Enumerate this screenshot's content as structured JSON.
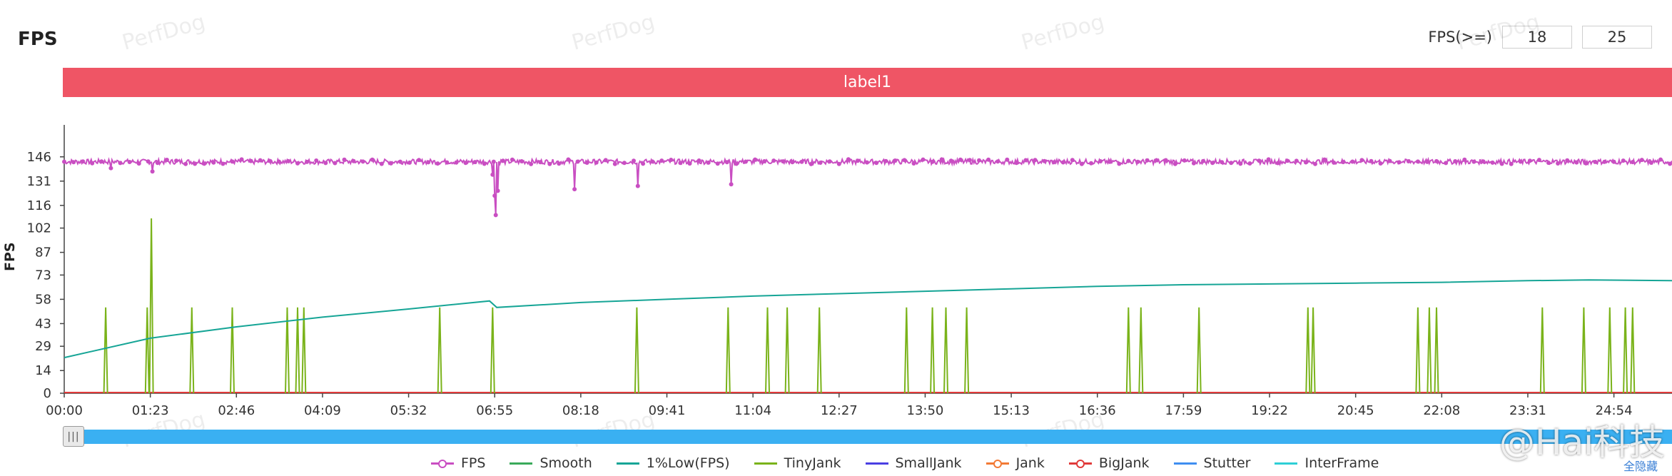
{
  "title": "FPS",
  "fps_filter": {
    "label": "FPS(>=)",
    "value1": "18",
    "value2": "25"
  },
  "label_bar": "label1",
  "hide_all": "全隐藏",
  "weibo_watermark": "@Hai科技",
  "watermark_text": "PerfDog",
  "legend": [
    {
      "name": "FPS",
      "color": "#c94ec2",
      "marker": true
    },
    {
      "name": "Smooth",
      "color": "#3aaa5a",
      "marker": false
    },
    {
      "name": "1%Low(FPS)",
      "color": "#16a596",
      "marker": false
    },
    {
      "name": "TinyJank",
      "color": "#7ab31a",
      "marker": false
    },
    {
      "name": "SmallJank",
      "color": "#4a3fe3",
      "marker": false
    },
    {
      "name": "Jank",
      "color": "#f27a35",
      "marker": true
    },
    {
      "name": "BigJank",
      "color": "#e03a3a",
      "marker": true
    },
    {
      "name": "Stutter",
      "color": "#3f8ef0",
      "marker": false
    },
    {
      "name": "InterFrame",
      "color": "#2ecfd6",
      "marker": false
    }
  ],
  "chart_data": {
    "type": "line",
    "ylabel": "FPS",
    "ylim": [
      0,
      160
    ],
    "xlim_seconds": [
      0,
      1550
    ],
    "yticks": [
      0,
      14,
      29,
      43,
      58,
      73,
      87,
      102,
      116,
      131,
      146
    ],
    "xticks": [
      "00:00",
      "01:23",
      "02:46",
      "04:09",
      "05:32",
      "06:55",
      "08:18",
      "09:41",
      "11:04",
      "12:27",
      "13:50",
      "15:13",
      "16:36",
      "17:59",
      "19:22",
      "20:45",
      "22:08",
      "23:31",
      "24:54"
    ],
    "grid": false,
    "legend_position": "bottom",
    "series": [
      {
        "name": "FPS",
        "baseline": 143,
        "dips": [
          {
            "t": "00:45",
            "v": 139
          },
          {
            "t": "01:25",
            "v": 137
          },
          {
            "t": "06:53",
            "v": 135
          },
          {
            "t": "06:55",
            "v": 122
          },
          {
            "t": "06:56",
            "v": 110
          },
          {
            "t": "06:58",
            "v": 125
          },
          {
            "t": "08:12",
            "v": 126
          },
          {
            "t": "09:13",
            "v": 128
          },
          {
            "t": "10:43",
            "v": 129
          }
        ]
      },
      {
        "name": "1%Low(FPS)",
        "points": [
          {
            "t": "00:00",
            "v": 22
          },
          {
            "t": "01:23",
            "v": 34
          },
          {
            "t": "02:46",
            "v": 41
          },
          {
            "t": "04:09",
            "v": 47
          },
          {
            "t": "05:32",
            "v": 52
          },
          {
            "t": "06:50",
            "v": 57
          },
          {
            "t": "06:57",
            "v": 53
          },
          {
            "t": "08:18",
            "v": 56
          },
          {
            "t": "09:41",
            "v": 58
          },
          {
            "t": "11:04",
            "v": 60
          },
          {
            "t": "12:27",
            "v": 61.5
          },
          {
            "t": "13:50",
            "v": 63
          },
          {
            "t": "15:13",
            "v": 64.5
          },
          {
            "t": "16:36",
            "v": 66
          },
          {
            "t": "17:59",
            "v": 67
          },
          {
            "t": "19:22",
            "v": 67.5
          },
          {
            "t": "20:45",
            "v": 68
          },
          {
            "t": "22:08",
            "v": 68.5
          },
          {
            "t": "23:31",
            "v": 69.5
          },
          {
            "t": "24:30",
            "v": 70
          },
          {
            "t": "25:50",
            "v": 69.5
          }
        ]
      },
      {
        "name": "TinyJank",
        "spikes": [
          {
            "t": "00:40",
            "v": 53
          },
          {
            "t": "01:20",
            "v": 53
          },
          {
            "t": "01:24",
            "v": 108
          },
          {
            "t": "02:03",
            "v": 53
          },
          {
            "t": "02:42",
            "v": 53
          },
          {
            "t": "03:35",
            "v": 53
          },
          {
            "t": "03:45",
            "v": 53
          },
          {
            "t": "03:51",
            "v": 53
          },
          {
            "t": "06:02",
            "v": 53
          },
          {
            "t": "06:53",
            "v": 53
          },
          {
            "t": "09:12",
            "v": 53
          },
          {
            "t": "10:40",
            "v": 53
          },
          {
            "t": "11:18",
            "v": 53
          },
          {
            "t": "11:37",
            "v": 53
          },
          {
            "t": "12:08",
            "v": 53
          },
          {
            "t": "13:32",
            "v": 53
          },
          {
            "t": "13:57",
            "v": 53
          },
          {
            "t": "14:10",
            "v": 53
          },
          {
            "t": "14:30",
            "v": 53
          },
          {
            "t": "17:06",
            "v": 53
          },
          {
            "t": "17:18",
            "v": 53
          },
          {
            "t": "18:14",
            "v": 53
          },
          {
            "t": "19:59",
            "v": 53
          },
          {
            "t": "20:04",
            "v": 53
          },
          {
            "t": "21:45",
            "v": 53
          },
          {
            "t": "21:56",
            "v": 53
          },
          {
            "t": "22:03",
            "v": 53
          },
          {
            "t": "23:45",
            "v": 53
          },
          {
            "t": "24:25",
            "v": 53
          },
          {
            "t": "24:50",
            "v": 53
          },
          {
            "t": "25:05",
            "v": 53
          },
          {
            "t": "25:12",
            "v": 53
          }
        ]
      },
      {
        "name": "Jank",
        "value": 0
      },
      {
        "name": "BigJank",
        "value": 0
      },
      {
        "name": "Smooth",
        "value": 0
      }
    ]
  }
}
